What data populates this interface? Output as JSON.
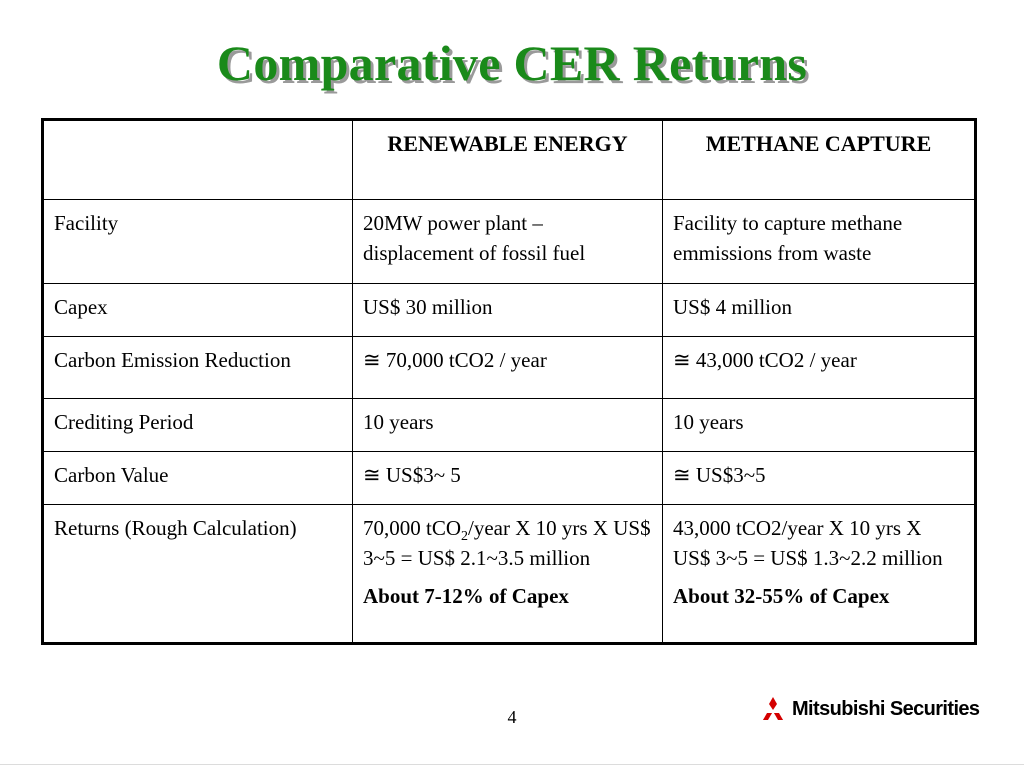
{
  "slide": {
    "title": "Comparative CER Returns",
    "page_number": "4",
    "brand": {
      "name": "Mitsubishi Securities",
      "logo_color": "#d40000",
      "icon": "three-diamonds-logo"
    },
    "title_color": "#1a8a1a"
  },
  "table": {
    "headers": [
      "",
      "RENEWABLE ENERGY",
      "METHANE CAPTURE"
    ],
    "rows": [
      {
        "label": "Facility",
        "renewable": "20MW power plant – displacement of fossil fuel",
        "methane": "Facility to capture methane emmissions from waste"
      },
      {
        "label": "Capex",
        "renewable": "US$ 30 million",
        "methane": "US$ 4 million"
      },
      {
        "label": "Carbon Emission Reduction",
        "renewable": "≅ 70,000 tCO2 / year",
        "methane": "≅ 43,000 tCO2 / year"
      },
      {
        "label": "Crediting Period",
        "renewable": "10 years",
        "methane": "10 years"
      },
      {
        "label": "Carbon Value",
        "renewable": "≅ US$3~ 5",
        "methane": "≅ US$3~5"
      },
      {
        "label": "Returns (Rough Calculation)",
        "renewable": {
          "calc_prefix": "70,000 tCO",
          "calc_sub": "2",
          "calc_suffix": "/year X 10 yrs X  US$ 3~5 = US$ 2.1~3.5 million",
          "summary": "About 7-12% of Capex"
        },
        "methane": {
          "calc": "43,000 tCO2/year X 10 yrs X  US$ 3~5 = US$ 1.3~2.2 million",
          "summary": "About 32-55% of Capex"
        }
      }
    ]
  }
}
